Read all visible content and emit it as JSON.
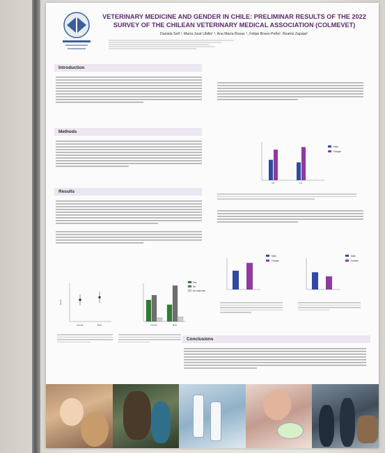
{
  "poster": {
    "title_line1": "VETERINARY MEDICINE AND GENDER IN CHILE: PRELIMINAR RESULTS OF THE 2022",
    "title_line2": "SURVEY OF THE CHILEAN VETERINARY MEDICAL ASSOCIATION (COLMEVET)",
    "authors": "Daniela Seif ¹, María José Ubilla² ³, Ana María Rosas ⁴, Felipe Bravo-Peña⁵, Beatriz Zapata⁶"
  },
  "sections": {
    "introduction": "Introduction",
    "methods": "Methods",
    "results": "Results",
    "conclusions": "Conclusions"
  },
  "colors": {
    "title": "#5b2a6e",
    "male": "#2f4aa0",
    "female": "#8e3a9e",
    "yes": "#2e7d32",
    "no": "#6e6e6e",
    "no_response": "#cfcfcf"
  },
  "icons": {
    "logo": "colmevet-logo-icon"
  },
  "chart_data": [
    {
      "type": "bar",
      "categories": [
        "CD",
        "FD"
      ],
      "series": [
        {
          "name": "Male",
          "values": [
            2.4,
            2.1
          ]
        },
        {
          "name": "Female",
          "values": [
            3.6,
            3.9
          ]
        }
      ],
      "legend": "top-right"
    },
    {
      "type": "scatter",
      "categories": [
        "Female",
        "Male"
      ],
      "values": [
        4.4,
        4.8
      ],
      "ylabel": "Score",
      "ylim": [
        1,
        7
      ]
    },
    {
      "type": "bar",
      "categories": [
        "Female",
        "Male"
      ],
      "series": [
        {
          "name": "Yes",
          "values": [
            45,
            35
          ]
        },
        {
          "name": "No",
          "values": [
            55,
            75
          ]
        },
        {
          "name": "No response",
          "values": [
            8,
            10
          ]
        }
      ],
      "legend": "top-right"
    },
    {
      "type": "bar",
      "categories": [
        ""
      ],
      "series": [
        {
          "name": "Male",
          "values": [
            60
          ]
        },
        {
          "name": "Female",
          "values": [
            85
          ]
        }
      ],
      "legend": "top-right"
    },
    {
      "type": "bar",
      "categories": [
        ""
      ],
      "series": [
        {
          "name": "Male",
          "values": [
            55
          ]
        },
        {
          "name": "Female",
          "values": [
            42
          ]
        }
      ],
      "legend": "top-right"
    }
  ]
}
